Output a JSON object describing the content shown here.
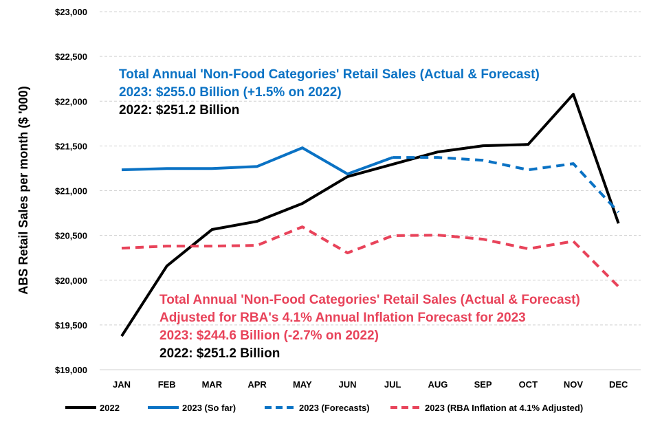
{
  "chart_data": {
    "type": "line",
    "ylabel": "ABS Retail Sales per month ($ '000)",
    "ylim": [
      19000,
      23000
    ],
    "yticks": [
      "$19,000",
      "$19,500",
      "$20,000",
      "$20,500",
      "$21,000",
      "$21,500",
      "$22,000",
      "$22,500",
      "$23,000"
    ],
    "ytick_values": [
      19000,
      19500,
      20000,
      20500,
      21000,
      21500,
      22000,
      22500,
      23000
    ],
    "categories": [
      "JAN",
      "FEB",
      "MAR",
      "APR",
      "MAY",
      "JUN",
      "JUL",
      "AUG",
      "SEP",
      "OCT",
      "NOV",
      "DEC"
    ],
    "grid": true,
    "legend_position": "bottom",
    "series": [
      {
        "name": "2022",
        "color": "#000000",
        "dash": false,
        "values": [
          19376,
          20159,
          20566,
          20658,
          20857,
          21157,
          21295,
          21433,
          21502,
          21517,
          22078,
          20635
        ]
      },
      {
        "name": "2023 (So far)",
        "color": "#0A72C4",
        "dash": false,
        "values": [
          21233,
          21248,
          21248,
          21271,
          21479,
          21187,
          21371,
          null,
          null,
          null,
          null,
          null
        ]
      },
      {
        "name": "2023 (Forecasts)",
        "color": "#0A72C4",
        "dash": true,
        "values": [
          null,
          null,
          null,
          null,
          null,
          null,
          21371,
          21371,
          21340,
          21233,
          21302,
          20760
        ]
      },
      {
        "name": "2023 (RBA Inflation at 4.1% Adjusted)",
        "color": "#E8435A",
        "dash": true,
        "values": [
          20358,
          20381,
          20381,
          20389,
          20596,
          20305,
          20497,
          20504,
          20458,
          20351,
          20435,
          19929
        ]
      }
    ],
    "annotations": {
      "blue": [
        "Total Annual 'Non-Food Categories' Retail Sales (Actual & Forecast)",
        "2023: $255.0 Billion (+1.5% on 2022)"
      ],
      "blue_2022": "2022: $251.2 Billion",
      "red": [
        "Total Annual 'Non-Food Categories' Retail Sales (Actual & Forecast)",
        "Adjusted for RBA's 4.1% Annual Inflation Forecast for 2023",
        "2023: $244.6 Billion (-2.7% on 2022)"
      ],
      "red_2022": "2022: $251.2 Billion"
    }
  }
}
